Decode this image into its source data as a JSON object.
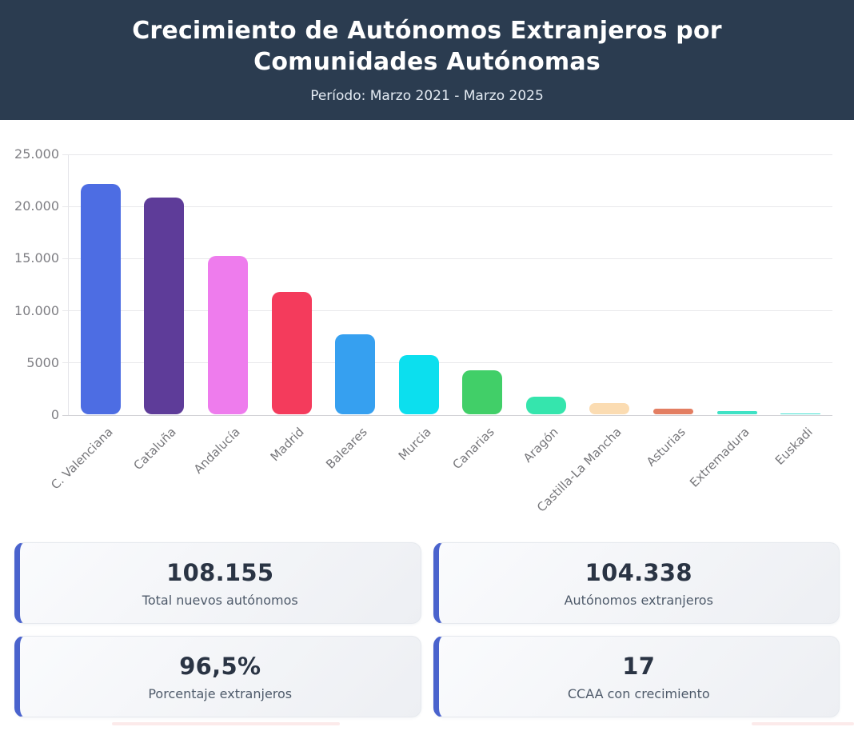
{
  "header": {
    "title": "Crecimiento de Autónomos Extranjeros por Comunidades Autónomas",
    "subtitle": "Período: Marzo 2021 - Marzo 2025"
  },
  "chart_data": {
    "type": "bar",
    "title": "Crecimiento de Autónomos Extranjeros por Comunidades Autónomas",
    "subtitle": "Período: Marzo 2021 - Marzo 2025",
    "categories": [
      "C. Valenciana",
      "Cataluña",
      "Andalucía",
      "Madrid",
      "Baleares",
      "Murcia",
      "Canarias",
      "Aragón",
      "Castilla-La Mancha",
      "Asturias",
      "Extremadura",
      "Euskadi"
    ],
    "values": [
      22100,
      20800,
      15200,
      11700,
      7700,
      5700,
      4200,
      1700,
      1100,
      500,
      300,
      60
    ],
    "bar_colors": [
      "#4d6de3",
      "#5e3c99",
      "#ee7ced",
      "#f43b5c",
      "#36a0f0",
      "#0cdfee",
      "#41cf68",
      "#35e5ad",
      "#fbdcb2",
      "#e37e62",
      "#3fe2c5",
      "#40e0d0"
    ],
    "xlabel": "",
    "ylabel": "",
    "ylim": [
      0,
      25000
    ],
    "grid": true,
    "legend": "none",
    "y_ticks": [
      {
        "label": "0",
        "value": 0
      },
      {
        "label": "5000",
        "value": 5000
      },
      {
        "label": "10.000",
        "value": 10000
      },
      {
        "label": "15.000",
        "value": 15000
      },
      {
        "label": "20.000",
        "value": 20000
      },
      {
        "label": "25.000",
        "value": 25000
      }
    ]
  },
  "stats": {
    "cards": [
      {
        "value": "108.155",
        "label": "Total nuevos autónomos"
      },
      {
        "value": "104.338",
        "label": "Autónomos extranjeros"
      },
      {
        "value": "96,5%",
        "label": "Porcentaje extranjeros"
      },
      {
        "value": "17",
        "label": "CCAA con crecimiento"
      }
    ]
  },
  "colors": {
    "header_bg": "#2b3c50",
    "card_accent": "#4a63cd",
    "gridline": "#e8e8eb",
    "tick_text": "#7f7f84"
  }
}
